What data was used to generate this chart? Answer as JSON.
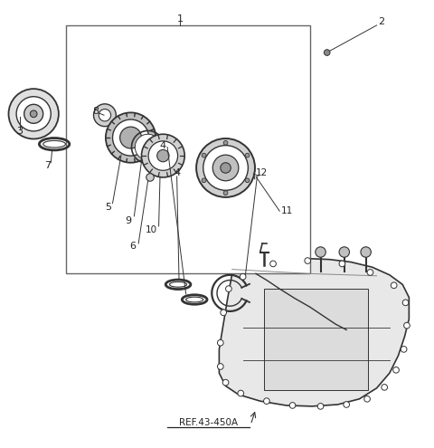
{
  "bg_color": "#ffffff",
  "line_color": "#333333",
  "text_color": "#222222",
  "ref_text": "REF.43-450A",
  "fig_width": 4.8,
  "fig_height": 4.95,
  "dpi": 100
}
